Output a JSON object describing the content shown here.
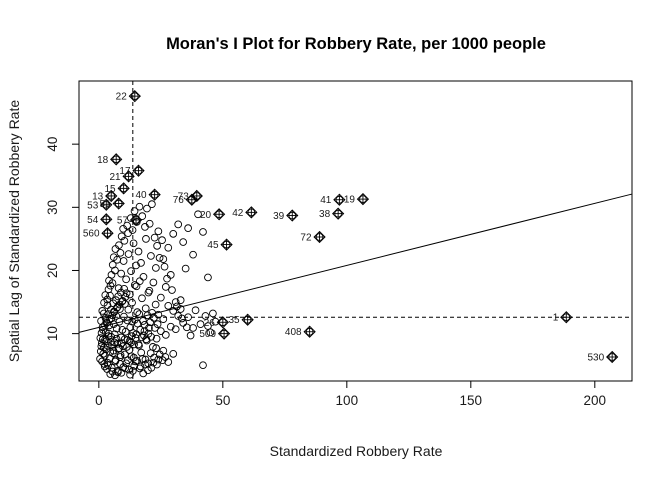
{
  "chart_data": {
    "type": "scatter",
    "title": "Moran's I Plot for Robbery Rate, per 1000 people",
    "xlabel": "Standardized Robbery Rate",
    "ylabel": "Spatial Lag of Standardized Robbery Rate",
    "xlim": [
      -8,
      215
    ],
    "ylim": [
      2.5,
      50
    ],
    "xticks": [
      0,
      50,
      100,
      150,
      200
    ],
    "yticks": [
      10,
      20,
      30,
      40
    ],
    "mean_x": 13.7,
    "mean_y": 12.6,
    "regression": {
      "x0": -8,
      "y0": 10.2,
      "x1": 215,
      "y1": 32.1
    },
    "influential": [
      {
        "label": "22",
        "x": 14.5,
        "y": 47.6
      },
      {
        "label": "18",
        "x": 7.0,
        "y": 37.6
      },
      {
        "label": "17",
        "x": 16.0,
        "y": 35.8
      },
      {
        "label": "21",
        "x": 12.0,
        "y": 34.9
      },
      {
        "label": "15",
        "x": 10.0,
        "y": 33.0
      },
      {
        "label": "13",
        "x": 5.0,
        "y": 31.8
      },
      {
        "label": "40",
        "x": 22.5,
        "y": 32.0
      },
      {
        "label": "73",
        "x": 39.5,
        "y": 31.8
      },
      {
        "label": "76",
        "x": 37.5,
        "y": 31.2
      },
      {
        "label": "41",
        "x": 97.0,
        "y": 31.2
      },
      {
        "label": "19",
        "x": 106.5,
        "y": 31.3
      },
      {
        "label": "53",
        "x": 3.0,
        "y": 30.4
      },
      {
        "label": "51",
        "x": 8.0,
        "y": 30.6
      },
      {
        "label": "20",
        "x": 48.5,
        "y": 28.9
      },
      {
        "label": "42",
        "x": 61.5,
        "y": 29.2
      },
      {
        "label": "39",
        "x": 78.0,
        "y": 28.7
      },
      {
        "label": "38",
        "x": 96.5,
        "y": 29.0
      },
      {
        "label": "54",
        "x": 3.0,
        "y": 28.1
      },
      {
        "label": "57",
        "x": 15.0,
        "y": 28.0
      },
      {
        "label": "72",
        "x": 89.0,
        "y": 25.3
      },
      {
        "label": "560",
        "x": 3.5,
        "y": 25.9
      },
      {
        "label": "45",
        "x": 51.5,
        "y": 24.1
      },
      {
        "label": "1",
        "x": 188.5,
        "y": 12.6
      },
      {
        "label": "26",
        "x": 50.0,
        "y": 11.8
      },
      {
        "label": "35",
        "x": 60.0,
        "y": 12.2
      },
      {
        "label": "509",
        "x": 50.5,
        "y": 10.0
      },
      {
        "label": "408",
        "x": 85.0,
        "y": 10.3
      },
      {
        "label": "530",
        "x": 207.0,
        "y": 6.3
      }
    ],
    "points": [
      [
        0.5,
        6.0
      ],
      [
        0.8,
        7.2
      ],
      [
        1.2,
        8.5
      ],
      [
        1.6,
        9.1
      ],
      [
        2.0,
        7.8
      ],
      [
        2.4,
        6.5
      ],
      [
        2.8,
        10.2
      ],
      [
        3.1,
        8.8
      ],
      [
        3.5,
        5.4
      ],
      [
        3.9,
        9.6
      ],
      [
        4.2,
        11.3
      ],
      [
        4.6,
        7.1
      ],
      [
        5.0,
        12.4
      ],
      [
        5.3,
        8.2
      ],
      [
        5.7,
        6.9
      ],
      [
        6.1,
        13.5
      ],
      [
        6.4,
        9.9
      ],
      [
        6.8,
        5.8
      ],
      [
        7.2,
        10.8
      ],
      [
        7.5,
        14.2
      ],
      [
        7.9,
        7.6
      ],
      [
        8.3,
        11.9
      ],
      [
        8.6,
        6.3
      ],
      [
        9.0,
        9.4
      ],
      [
        9.4,
        15.1
      ],
      [
        9.7,
        8.0
      ],
      [
        10.1,
        12.7
      ],
      [
        10.5,
        6.7
      ],
      [
        10.8,
        10.3
      ],
      [
        11.2,
        16.4
      ],
      [
        11.6,
        9.0
      ],
      [
        11.9,
        13.8
      ],
      [
        12.3,
        7.4
      ],
      [
        12.7,
        11.0
      ],
      [
        13.0,
        8.6
      ],
      [
        13.4,
        14.9
      ],
      [
        13.8,
        10.1
      ],
      [
        14.1,
        6.2
      ],
      [
        14.5,
        12.2
      ],
      [
        14.9,
        9.3
      ],
      [
        15.2,
        17.5
      ],
      [
        15.6,
        11.6
      ],
      [
        16.0,
        8.3
      ],
      [
        16.3,
        13.1
      ],
      [
        16.7,
        10.6
      ],
      [
        17.1,
        7.0
      ],
      [
        17.4,
        15.6
      ],
      [
        17.8,
        12.0
      ],
      [
        18.2,
        9.7
      ],
      [
        18.5,
        11.4
      ],
      [
        18.9,
        14.0
      ],
      [
        19.3,
        8.9
      ],
      [
        19.6,
        12.9
      ],
      [
        20.0,
        10.0
      ],
      [
        20.4,
        16.8
      ],
      [
        20.7,
        11.8
      ],
      [
        21.1,
        9.5
      ],
      [
        21.5,
        13.3
      ],
      [
        21.8,
        7.9
      ],
      [
        22.2,
        12.5
      ],
      [
        22.6,
        10.9
      ],
      [
        22.9,
        14.6
      ],
      [
        23.3,
        9.2
      ],
      [
        23.7,
        11.5
      ],
      [
        24.0,
        13.0
      ],
      [
        25.0,
        10.4
      ],
      [
        26.0,
        12.3
      ],
      [
        27.0,
        9.8
      ],
      [
        28.0,
        14.4
      ],
      [
        29.0,
        11.1
      ],
      [
        30.0,
        13.6
      ],
      [
        31.0,
        10.7
      ],
      [
        32.0,
        12.8
      ],
      [
        33.0,
        15.3
      ],
      [
        34.0,
        11.7
      ],
      [
        36.0,
        12.6
      ],
      [
        38.0,
        10.9
      ],
      [
        42.0,
        5.0
      ],
      [
        44.0,
        11.2
      ],
      [
        46.0,
        13.2
      ],
      [
        1.0,
        8.0
      ],
      [
        1.5,
        11.0
      ],
      [
        2.0,
        13.2
      ],
      [
        2.5,
        9.0
      ],
      [
        3.0,
        12.0
      ],
      [
        3.5,
        14.5
      ],
      [
        4.0,
        10.0
      ],
      [
        4.5,
        16.0
      ],
      [
        5.0,
        9.5
      ],
      [
        5.5,
        18.0
      ],
      [
        6.0,
        11.5
      ],
      [
        6.5,
        20.0
      ],
      [
        7.0,
        12.8
      ],
      [
        7.5,
        8.4
      ],
      [
        8.0,
        17.2
      ],
      [
        8.5,
        13.9
      ],
      [
        9.0,
        19.5
      ],
      [
        9.5,
        10.6
      ],
      [
        10.0,
        21.5
      ],
      [
        10.5,
        14.7
      ],
      [
        11.0,
        18.6
      ],
      [
        11.5,
        12.1
      ],
      [
        12.0,
        22.6
      ],
      [
        12.5,
        16.2
      ],
      [
        13.0,
        19.9
      ],
      [
        13.5,
        11.9
      ],
      [
        14.0,
        24.3
      ],
      [
        14.5,
        17.7
      ],
      [
        15.0,
        20.8
      ],
      [
        15.5,
        13.4
      ],
      [
        16.0,
        23.0
      ],
      [
        16.5,
        18.3
      ],
      [
        17.0,
        21.2
      ],
      [
        18.0,
        19.0
      ],
      [
        19.0,
        25.0
      ],
      [
        20.0,
        16.5
      ],
      [
        21.0,
        22.3
      ],
      [
        22.0,
        18.1
      ],
      [
        23.0,
        20.4
      ],
      [
        24.0,
        26.2
      ],
      [
        25.0,
        15.7
      ],
      [
        26.0,
        21.8
      ],
      [
        27.0,
        17.4
      ],
      [
        28.0,
        23.6
      ],
      [
        29.0,
        19.3
      ],
      [
        30.0,
        25.8
      ],
      [
        31.0,
        15.0
      ],
      [
        32.0,
        27.3
      ],
      [
        33.0,
        13.9
      ],
      [
        34.0,
        24.5
      ],
      [
        35.0,
        20.3
      ],
      [
        36.0,
        26.7
      ],
      [
        38.0,
        22.5
      ],
      [
        40.0,
        28.9
      ],
      [
        42.0,
        26.1
      ],
      [
        44.0,
        18.9
      ],
      [
        28.0,
        5.5
      ],
      [
        30.0,
        6.8
      ],
      [
        26.0,
        7.3
      ],
      [
        24.0,
        5.9
      ],
      [
        2.2,
        5.2
      ],
      [
        3.3,
        4.4
      ],
      [
        4.4,
        6.1
      ],
      [
        5.5,
        4.0
      ],
      [
        6.6,
        5.6
      ],
      [
        7.7,
        3.9
      ],
      [
        8.8,
        6.6
      ],
      [
        9.9,
        4.7
      ],
      [
        11.0,
        5.3
      ],
      [
        12.1,
        4.3
      ],
      [
        13.2,
        6.4
      ],
      [
        14.3,
        4.9
      ],
      [
        15.4,
        5.7
      ],
      [
        16.5,
        4.5
      ],
      [
        17.6,
        6.0
      ],
      [
        18.7,
        5.1
      ],
      [
        19.8,
        4.2
      ],
      [
        20.9,
        6.9
      ],
      [
        22.0,
        5.4
      ],
      [
        23.1,
        7.7
      ],
      [
        1.8,
        6.8
      ],
      [
        2.9,
        7.5
      ],
      [
        3.6,
        8.1
      ],
      [
        4.8,
        8.7
      ],
      [
        5.9,
        7.3
      ],
      [
        6.3,
        8.6
      ],
      [
        7.1,
        9.2
      ],
      [
        8.2,
        7.7
      ],
      [
        9.3,
        8.5
      ],
      [
        10.4,
        9.1
      ],
      [
        11.3,
        7.9
      ],
      [
        12.4,
        8.8
      ],
      [
        13.3,
        9.6
      ],
      [
        14.2,
        8.3
      ],
      [
        15.1,
        9.9
      ],
      [
        16.2,
        8.1
      ],
      [
        17.3,
        9.4
      ],
      [
        18.4,
        10.4
      ],
      [
        19.1,
        9.1
      ],
      [
        20.2,
        10.9
      ],
      [
        0.6,
        9.3
      ],
      [
        1.1,
        10.1
      ],
      [
        1.7,
        10.6
      ],
      [
        2.3,
        11.3
      ],
      [
        2.7,
        12.5
      ],
      [
        3.2,
        11.7
      ],
      [
        3.8,
        13.1
      ],
      [
        4.3,
        12.3
      ],
      [
        4.9,
        13.8
      ],
      [
        5.4,
        12.9
      ],
      [
        5.8,
        14.8
      ],
      [
        6.2,
        13.4
      ],
      [
        6.9,
        15.3
      ],
      [
        7.3,
        14.1
      ],
      [
        7.8,
        15.9
      ],
      [
        8.4,
        14.6
      ],
      [
        8.9,
        16.5
      ],
      [
        9.6,
        15.2
      ],
      [
        10.2,
        17.1
      ],
      [
        10.7,
        15.8
      ],
      [
        0.9,
        12.0
      ],
      [
        1.4,
        13.6
      ],
      [
        2.1,
        14.9
      ],
      [
        2.6,
        16.1
      ],
      [
        3.4,
        15.4
      ],
      [
        3.9,
        17.0
      ],
      [
        4.1,
        18.4
      ],
      [
        4.7,
        17.6
      ],
      [
        5.1,
        19.3
      ],
      [
        5.6,
        20.9
      ],
      [
        6.0,
        22.1
      ],
      [
        6.7,
        23.4
      ],
      [
        7.4,
        21.7
      ],
      [
        8.1,
        24.0
      ],
      [
        8.7,
        22.8
      ],
      [
        9.2,
        25.4
      ],
      [
        9.8,
        26.6
      ],
      [
        10.3,
        24.7
      ],
      [
        11.4,
        27.1
      ],
      [
        11.8,
        25.9
      ],
      [
        12.9,
        28.3
      ],
      [
        13.6,
        26.4
      ],
      [
        14.4,
        29.4
      ],
      [
        15.3,
        27.7
      ],
      [
        16.4,
        30.1
      ],
      [
        17.5,
        28.6
      ],
      [
        18.6,
        26.9
      ],
      [
        19.4,
        29.8
      ],
      [
        20.5,
        27.4
      ],
      [
        21.4,
        30.5
      ],
      [
        22.5,
        25.2
      ],
      [
        23.5,
        23.9
      ],
      [
        24.5,
        22.0
      ],
      [
        25.5,
        24.8
      ],
      [
        26.5,
        20.6
      ],
      [
        27.5,
        18.7
      ],
      [
        29.5,
        16.9
      ],
      [
        31.5,
        14.3
      ],
      [
        33.5,
        12.4
      ],
      [
        35.5,
        11.0
      ],
      [
        37.0,
        9.7
      ],
      [
        39.0,
        13.7
      ],
      [
        41.0,
        11.5
      ],
      [
        43.0,
        12.8
      ],
      [
        45.0,
        10.2
      ],
      [
        47.0,
        11.9
      ],
      [
        1.3,
        5.6
      ],
      [
        2.4,
        4.8
      ],
      [
        3.7,
        5.0
      ],
      [
        4.6,
        3.6
      ],
      [
        5.2,
        4.6
      ],
      [
        6.5,
        3.4
      ],
      [
        7.6,
        4.1
      ],
      [
        8.6,
        5.2
      ],
      [
        9.1,
        3.8
      ],
      [
        10.6,
        4.5
      ],
      [
        11.7,
        5.8
      ],
      [
        12.6,
        3.5
      ],
      [
        13.7,
        4.1
      ],
      [
        14.8,
        5.6
      ],
      [
        16.8,
        4.8
      ],
      [
        17.9,
        3.7
      ],
      [
        18.8,
        5.9
      ],
      [
        19.9,
        5.3
      ],
      [
        21.2,
        4.6
      ],
      [
        22.3,
        6.2
      ],
      [
        23.4,
        5.1
      ],
      [
        24.6,
        6.7
      ],
      [
        25.7,
        5.8
      ],
      [
        26.8,
        6.3
      ]
    ]
  }
}
